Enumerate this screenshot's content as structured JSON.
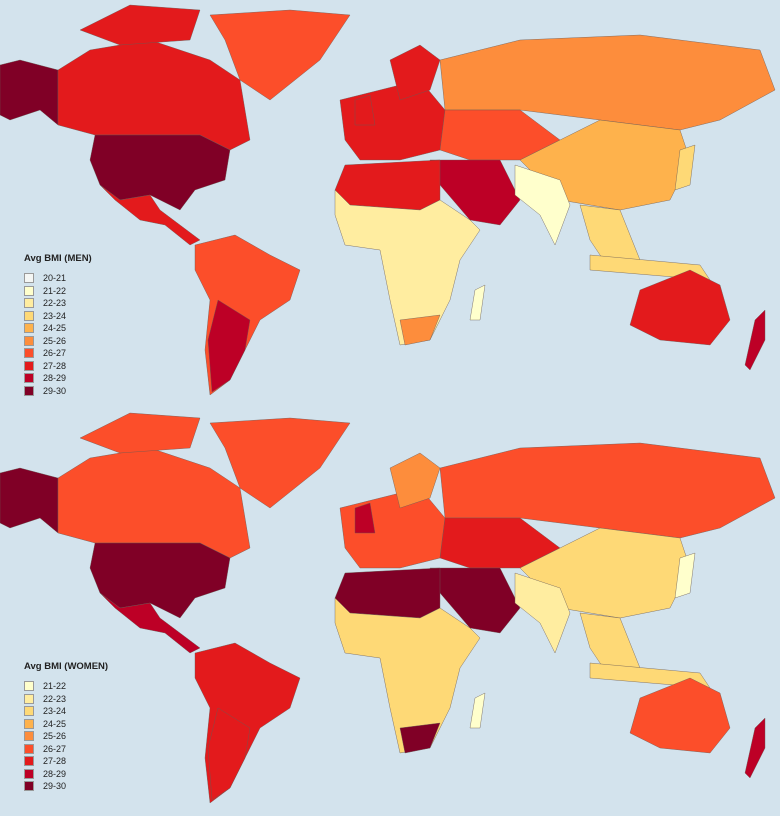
{
  "palette": {
    "20-21": "#f4f6f4",
    "21-22": "#ffffcc",
    "22-23": "#ffeda0",
    "23-24": "#fed976",
    "24-25": "#feb24c",
    "25-26": "#fd8d3c",
    "26-27": "#fc4e2a",
    "27-28": "#e31a1c",
    "28-29": "#bd0026",
    "29-30": "#800026"
  },
  "ocean_color": "#d3e3ed",
  "men": {
    "legend_title": "Avg BMI (MEN)",
    "legend_items": [
      "20-21",
      "21-22",
      "22-23",
      "23-24",
      "24-25",
      "25-26",
      "26-27",
      "27-28",
      "28-29",
      "29-30"
    ]
  },
  "women": {
    "legend_title": "Avg BMI (WOMEN)",
    "legend_items": [
      "21-22",
      "22-23",
      "23-24",
      "24-25",
      "25-26",
      "26-27",
      "27-28",
      "28-29",
      "29-30"
    ]
  },
  "regions": [
    {
      "region": "alaska",
      "men": "29-30",
      "women": "29-30"
    },
    {
      "region": "canada",
      "men": "27-28",
      "women": "26-27"
    },
    {
      "region": "arctic-islands",
      "men": "27-28",
      "women": "26-27"
    },
    {
      "region": "greenland",
      "men": "26-27",
      "women": "26-27"
    },
    {
      "region": "usa",
      "men": "29-30",
      "women": "29-30"
    },
    {
      "region": "central-america",
      "men": "27-28",
      "women": "28-29"
    },
    {
      "region": "south-america",
      "men": "26-27",
      "women": "27-28"
    },
    {
      "region": "argentina",
      "men": "28-29",
      "women": "27-28"
    },
    {
      "region": "europe",
      "men": "27-28",
      "women": "26-27"
    },
    {
      "region": "scandinavia",
      "men": "27-28",
      "women": "25-26"
    },
    {
      "region": "uk",
      "men": "27-28",
      "women": "28-29"
    },
    {
      "region": "russia",
      "men": "25-26",
      "women": "26-27"
    },
    {
      "region": "central-asia",
      "men": "26-27",
      "women": "27-28"
    },
    {
      "region": "middle-east",
      "men": "28-29",
      "women": "29-30"
    },
    {
      "region": "north-africa",
      "men": "27-28",
      "women": "29-30"
    },
    {
      "region": "sub-saharan-africa",
      "men": "22-23",
      "women": "23-24"
    },
    {
      "region": "southern-africa",
      "men": "25-26",
      "women": "29-30"
    },
    {
      "region": "china-mongolia",
      "men": "24-25",
      "women": "23-24"
    },
    {
      "region": "india",
      "men": "21-22",
      "women": "22-23"
    },
    {
      "region": "southeast-asia",
      "men": "23-24",
      "women": "23-24"
    },
    {
      "region": "japan",
      "men": "23-24",
      "women": "21-22"
    },
    {
      "region": "indonesia",
      "men": "23-24",
      "women": "23-24"
    },
    {
      "region": "australia",
      "men": "27-28",
      "women": "26-27"
    },
    {
      "region": "new-zealand",
      "men": "28-29",
      "women": "28-29"
    },
    {
      "region": "madagascar",
      "men": "21-22",
      "women": "21-22"
    }
  ]
}
